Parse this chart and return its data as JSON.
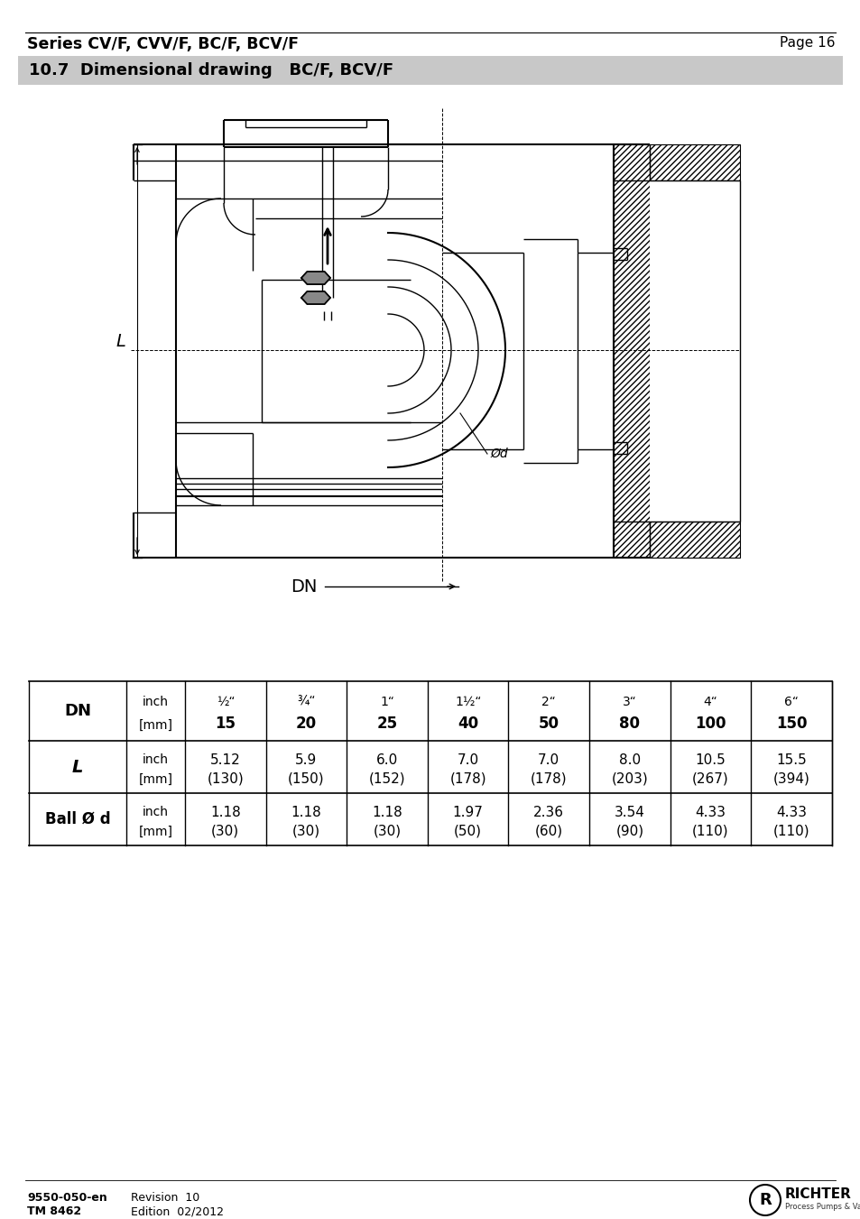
{
  "page_title": "Series CV/F, CVV/F, BC/F, BCV/F",
  "page_number": "Page 16",
  "section_title": "10.7  Dimensional drawing   BC/F, BCV/F",
  "table": {
    "col_headers_inch": [
      "½“",
      "¾“",
      "1“",
      "1½“",
      "2“",
      "3“",
      "4“",
      "6“"
    ],
    "col_headers_mm": [
      "15",
      "20",
      "25",
      "40",
      "50",
      "80",
      "100",
      "150"
    ],
    "L_inch": [
      "5.12",
      "5.9",
      "6.0",
      "7.0",
      "7.0",
      "8.0",
      "10.5",
      "15.5"
    ],
    "L_mm": [
      "(130)",
      "(150)",
      "(152)",
      "(178)",
      "(178)",
      "(203)",
      "(267)",
      "(394)"
    ],
    "ball_inch": [
      "1.18",
      "1.18",
      "1.18",
      "1.97",
      "2.36",
      "3.54",
      "4.33",
      "4.33"
    ],
    "ball_mm": [
      "(30)",
      "(30)",
      "(30)",
      "(50)",
      "(60)",
      "(90)",
      "(110)",
      "(110)"
    ]
  },
  "footer_code": "9550-050-en",
  "footer_tm": "TM 8462",
  "footer_rev": "Revision  10",
  "footer_ed": "Edition  02/2012"
}
